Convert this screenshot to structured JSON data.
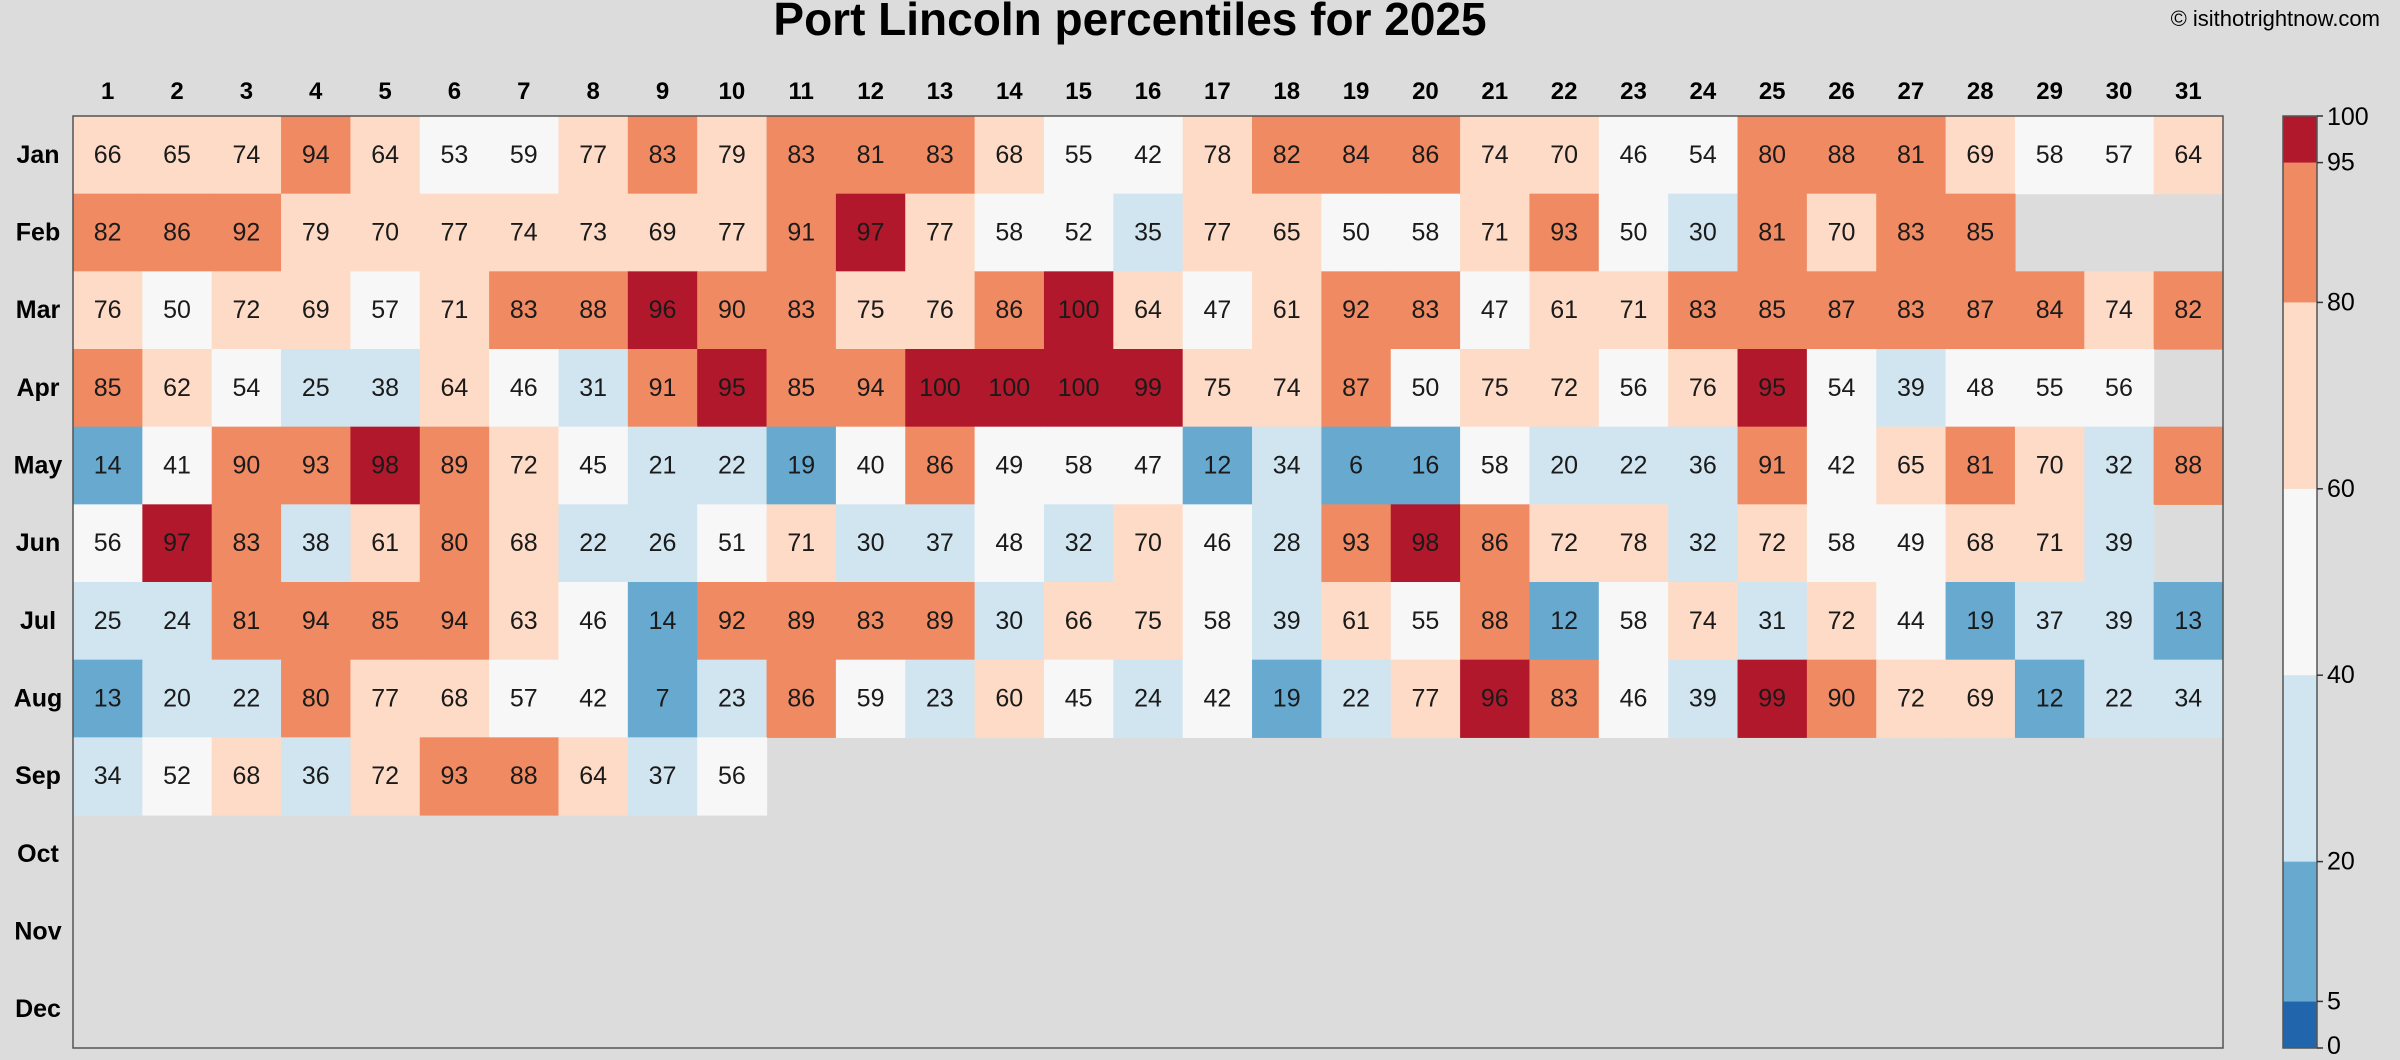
{
  "chart_data": {
    "type": "heatmap",
    "title": "Port Lincoln percentiles for 2025",
    "credit": "© isithotrightnow.com",
    "x_categories": [
      "1",
      "2",
      "3",
      "4",
      "5",
      "6",
      "7",
      "8",
      "9",
      "10",
      "11",
      "12",
      "13",
      "14",
      "15",
      "16",
      "17",
      "18",
      "19",
      "20",
      "21",
      "22",
      "23",
      "24",
      "25",
      "26",
      "27",
      "28",
      "29",
      "30",
      "31"
    ],
    "y_categories": [
      "Jan",
      "Feb",
      "Mar",
      "Apr",
      "May",
      "Jun",
      "Jul",
      "Aug",
      "Sep",
      "Oct",
      "Nov",
      "Dec"
    ],
    "values": [
      [
        66,
        65,
        74,
        94,
        64,
        53,
        59,
        77,
        83,
        79,
        83,
        81,
        83,
        68,
        55,
        42,
        78,
        82,
        84,
        86,
        74,
        70,
        46,
        54,
        80,
        88,
        81,
        69,
        58,
        57,
        64
      ],
      [
        82,
        86,
        92,
        79,
        70,
        77,
        74,
        73,
        69,
        77,
        91,
        97,
        77,
        58,
        52,
        35,
        77,
        65,
        50,
        58,
        71,
        93,
        50,
        30,
        81,
        70,
        83,
        85
      ],
      [
        76,
        50,
        72,
        69,
        57,
        71,
        83,
        88,
        96,
        90,
        83,
        75,
        76,
        86,
        100,
        64,
        47,
        61,
        92,
        83,
        47,
        61,
        71,
        83,
        85,
        87,
        83,
        87,
        84,
        74,
        82
      ],
      [
        85,
        62,
        54,
        25,
        38,
        64,
        46,
        31,
        91,
        95,
        85,
        94,
        100,
        100,
        100,
        99,
        75,
        74,
        87,
        50,
        75,
        72,
        56,
        76,
        95,
        54,
        39,
        48,
        55,
        56
      ],
      [
        14,
        41,
        90,
        93,
        98,
        89,
        72,
        45,
        21,
        22,
        19,
        40,
        86,
        49,
        58,
        47,
        12,
        34,
        6,
        16,
        58,
        20,
        22,
        36,
        91,
        42,
        65,
        81,
        70,
        32,
        88
      ],
      [
        56,
        97,
        83,
        38,
        61,
        80,
        68,
        22,
        26,
        51,
        71,
        30,
        37,
        48,
        32,
        70,
        46,
        28,
        93,
        98,
        86,
        72,
        78,
        32,
        72,
        58,
        49,
        68,
        71,
        39
      ],
      [
        25,
        24,
        81,
        94,
        85,
        94,
        63,
        46,
        14,
        92,
        89,
        83,
        89,
        30,
        66,
        75,
        58,
        39,
        61,
        55,
        88,
        12,
        58,
        74,
        31,
        72,
        44,
        19,
        37,
        39,
        13
      ],
      [
        13,
        20,
        22,
        80,
        77,
        68,
        57,
        42,
        7,
        23,
        86,
        59,
        23,
        60,
        45,
        24,
        42,
        19,
        22,
        77,
        96,
        83,
        46,
        39,
        99,
        90,
        72,
        69,
        12,
        22,
        34
      ],
      [
        34,
        52,
        68,
        36,
        72,
        93,
        88,
        64,
        37,
        56
      ],
      [],
      [],
      []
    ],
    "colorbar": {
      "ticks": [
        0,
        5,
        20,
        40,
        60,
        80,
        95,
        100
      ],
      "bins": [
        {
          "min": 0,
          "max": 5,
          "color": "#2166ac"
        },
        {
          "min": 5,
          "max": 20,
          "color": "#67a9cf"
        },
        {
          "min": 20,
          "max": 40,
          "color": "#d1e5f0"
        },
        {
          "min": 40,
          "max": 60,
          "color": "#f7f7f7"
        },
        {
          "min": 60,
          "max": 80,
          "color": "#fddbc7"
        },
        {
          "min": 80,
          "max": 95,
          "color": "#ef8a62"
        },
        {
          "min": 95,
          "max": 100,
          "color": "#b2182b"
        }
      ]
    },
    "background_color": "#dcdcdc"
  }
}
